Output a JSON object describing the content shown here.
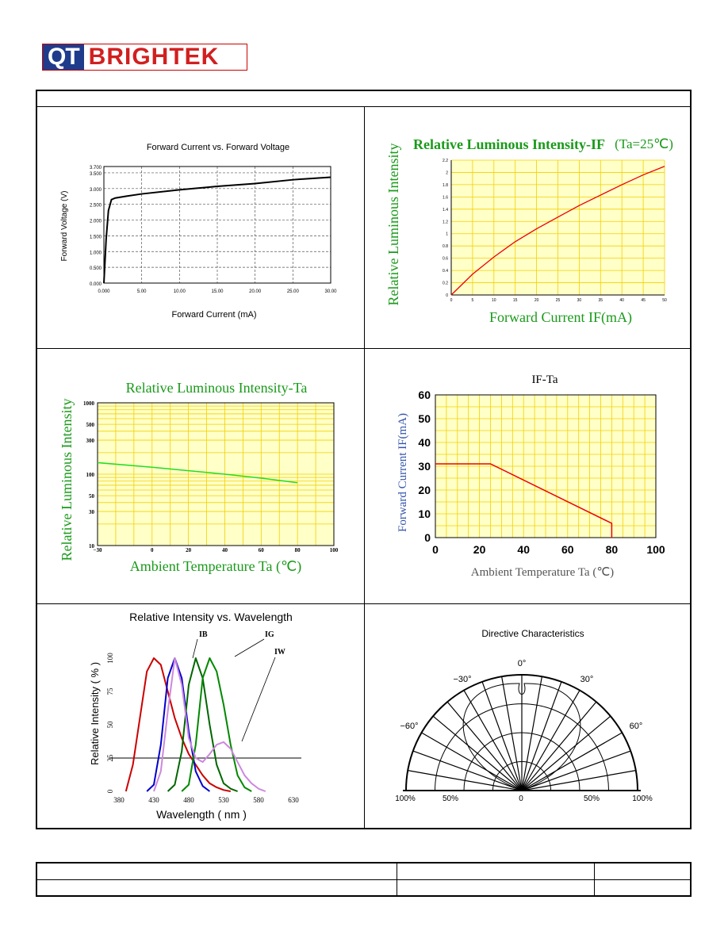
{
  "logo": {
    "part1": "QT",
    "part2": "BRIGHTEK"
  },
  "charts": {
    "fv": {
      "title": "Forward Current vs. Forward Voltage",
      "xlabel": "Forward Current (mA)",
      "ylabel": "Forward Voltage (V)",
      "yticks": [
        "0.000",
        "0.500",
        "1.000",
        "1.500",
        "2.000",
        "2.500",
        "3.000",
        "3.500",
        "3.700"
      ],
      "xticks": [
        "0.000",
        "5.00",
        "10.00",
        "15.00",
        "20.00",
        "25.00",
        "30.00"
      ]
    },
    "rli_if": {
      "title": "Relative Luminous Intensity-IF",
      "title_suffix": "(Ta=25℃)",
      "xlabel": "Forward Current IF(mA)",
      "ylabel": "Relative Luminous Intensity",
      "yticks": [
        "0",
        "0.2",
        "0.4",
        "0.6",
        "0.8",
        "1",
        "1.2",
        "1.4",
        "1.6",
        "1.8",
        "2",
        "2.2"
      ],
      "xticks": [
        "0",
        "5",
        "10",
        "15",
        "20",
        "25",
        "30",
        "35",
        "40",
        "45",
        "50"
      ]
    },
    "rli_ta": {
      "title": "Relative Luminous Intensity-Ta",
      "xlabel": "Ambient Temperature Ta (℃)",
      "ylabel": "Relative Luminous Intensity",
      "yticks": [
        "10",
        "30",
        "50",
        "100",
        "300",
        "500",
        "1000"
      ],
      "xticks": [
        "−30",
        "0",
        "20",
        "40",
        "60",
        "80",
        "100"
      ]
    },
    "if_ta": {
      "title": "IF-Ta",
      "xlabel": "Ambient Temperature Ta (℃)",
      "ylabel": "Forward Current IF(mA)",
      "yticks": [
        "0",
        "10",
        "20",
        "30",
        "40",
        "50",
        "60"
      ],
      "xticks": [
        "0",
        "20",
        "40",
        "60",
        "80",
        "100"
      ]
    },
    "spectrum": {
      "title": "Relative Intensity vs. Wavelength",
      "xlabel": "Wavelength ( nm )",
      "ylabel": "Relative Intensity ( % )",
      "yticks": [
        "0",
        "25",
        "50",
        "75",
        "100"
      ],
      "xticks": [
        "380",
        "430",
        "480",
        "530",
        "580",
        "630"
      ],
      "series": [
        "IB",
        "IG",
        "IW"
      ]
    },
    "directive": {
      "title": "Directive Characteristics",
      "angles": [
        "0°",
        "30°",
        "−30°",
        "60°",
        "−60°"
      ],
      "scale": [
        "100%",
        "50%",
        "0",
        "50%",
        "100%"
      ]
    }
  },
  "chart_data": [
    {
      "type": "line",
      "title": "Forward Current vs. Forward Voltage",
      "xlabel": "Forward Current (mA)",
      "ylabel": "Forward Voltage (V)",
      "xlim": [
        0,
        30
      ],
      "ylim": [
        0,
        3.7
      ],
      "x": [
        0,
        0.3,
        0.6,
        1.0,
        1.5,
        3,
        5,
        10,
        15,
        20,
        25,
        28,
        30
      ],
      "y": [
        0,
        1.4,
        2.3,
        2.65,
        2.7,
        2.76,
        2.83,
        2.96,
        3.07,
        3.16,
        3.28,
        3.33,
        3.36
      ]
    },
    {
      "type": "line",
      "title": "Relative Luminous Intensity-IF (Ta=25℃)",
      "xlabel": "Forward Current IF(mA)",
      "ylabel": "Relative Luminous Intensity",
      "xlim": [
        0,
        50
      ],
      "ylim": [
        0,
        2.2
      ],
      "x": [
        0,
        5,
        10,
        15,
        20,
        25,
        30,
        35,
        40,
        45,
        50
      ],
      "y": [
        0,
        0.34,
        0.62,
        0.87,
        1.08,
        1.27,
        1.46,
        1.63,
        1.8,
        1.96,
        2.1
      ]
    },
    {
      "type": "line",
      "title": "Relative Luminous Intensity-Ta",
      "xlabel": "Ambient Temperature Ta (℃)",
      "ylabel": "Relative Luminous Intensity",
      "xlim": [
        -30,
        100
      ],
      "ylim": [
        10,
        1000
      ],
      "yscale": "log",
      "x": [
        -30,
        0,
        20,
        40,
        60,
        80
      ],
      "y": [
        145,
        125,
        112,
        100,
        88,
        76
      ]
    },
    {
      "type": "line",
      "title": "IF-Ta",
      "xlabel": "Ambient Temperature Ta (℃)",
      "ylabel": "Forward Current IF(mA)",
      "xlim": [
        0,
        100
      ],
      "ylim": [
        0,
        60
      ],
      "x": [
        0,
        25,
        80,
        80
      ],
      "y": [
        31,
        31,
        6,
        0
      ]
    },
    {
      "type": "line",
      "title": "Relative Intensity vs. Wavelength",
      "xlabel": "Wavelength ( nm )",
      "ylabel": "Relative Intensity ( % )",
      "xlim": [
        380,
        630
      ],
      "ylim": [
        0,
        100
      ],
      "series": [
        {
          "color": "#cc0000",
          "x": [
            390,
            400,
            410,
            420,
            430,
            440,
            450,
            460,
            470,
            480,
            490,
            500,
            510,
            520,
            530,
            540
          ],
          "y": [
            0,
            20,
            55,
            90,
            100,
            95,
            75,
            55,
            40,
            28,
            20,
            12,
            6,
            3,
            1,
            0
          ]
        },
        {
          "name": "IB",
          "color": "#0000cc",
          "x": [
            420,
            430,
            440,
            450,
            460,
            470,
            480,
            490,
            500,
            510
          ],
          "y": [
            0,
            5,
            35,
            85,
            100,
            85,
            45,
            15,
            4,
            0
          ]
        },
        {
          "color": "#006600",
          "x": [
            450,
            460,
            470,
            480,
            490,
            500,
            510,
            520,
            530,
            540,
            550
          ],
          "y": [
            0,
            5,
            30,
            80,
            100,
            85,
            50,
            20,
            6,
            2,
            0
          ]
        },
        {
          "name": "IG",
          "color": "#008800",
          "x": [
            470,
            480,
            490,
            500,
            510,
            520,
            530,
            540,
            550,
            560,
            570
          ],
          "y": [
            0,
            5,
            35,
            85,
            100,
            90,
            65,
            35,
            12,
            3,
            0
          ]
        },
        {
          "name": "IW",
          "color": "#cc88dd",
          "x": [
            430,
            440,
            450,
            460,
            470,
            480,
            490,
            500,
            510,
            520,
            530,
            540,
            550,
            560,
            570,
            580,
            590
          ],
          "y": [
            0,
            15,
            60,
            100,
            80,
            40,
            25,
            22,
            28,
            35,
            37,
            32,
            22,
            12,
            6,
            2,
            0
          ]
        }
      ],
      "hline": 25
    }
  ]
}
